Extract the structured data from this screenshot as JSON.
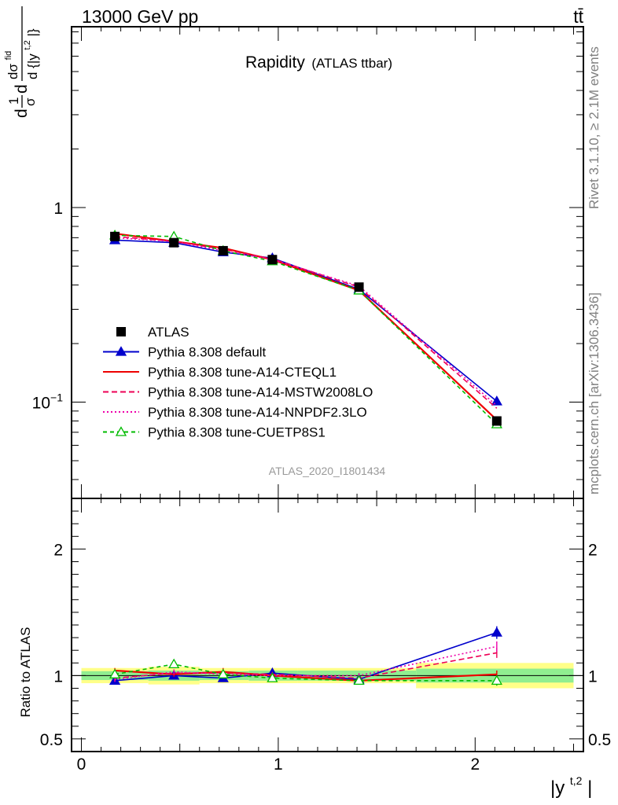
{
  "header": {
    "left": "13000 GeV pp",
    "right": "tt̄"
  },
  "title": {
    "main": "Rapidity",
    "sub": "(ATLAS ttbar)"
  },
  "side_texts": {
    "rivet": "Rivet 3.1.10, ≥ 2.1M events",
    "mcplots": "mcplots.cern.ch [arXiv:1306.3436]"
  },
  "watermark": "ATLAS_2020_I1801434",
  "y_title_upper": {
    "prefix": "d",
    "frac1_num": "1",
    "frac1_den": "σ",
    "mid": "d",
    "frac2_num": "dσ",
    "frac2_num_sup": "fid",
    "frac2_den": "d {|y",
    "frac2_den_sup": "t,2",
    "frac2_den_tail": "|}"
  },
  "x_title": {
    "base": "|y",
    "sup": "t,2",
    "tail": "|"
  },
  "chart_data": [
    {
      "type": "line",
      "panel": "main",
      "ylabel_ref": "y_title_upper",
      "log_y": true,
      "xlim": [
        -0.05,
        2.55
      ],
      "ylim": [
        0.032,
        8.5
      ],
      "x_ticks": [
        {
          "value": 0,
          "label": "0"
        },
        {
          "value": 1,
          "label": "1"
        },
        {
          "value": 2,
          "label": "2"
        }
      ],
      "y_ticks": [
        {
          "value": 0.1,
          "base": "10",
          "exp": "−1"
        },
        {
          "value": 1,
          "base": "1",
          "exp": ""
        }
      ],
      "x": [
        0.17,
        0.47,
        0.72,
        0.97,
        1.41,
        2.11
      ],
      "x_bins": [
        [
          0.0,
          0.34
        ],
        [
          0.34,
          0.6
        ],
        [
          0.6,
          0.85
        ],
        [
          0.85,
          1.1
        ],
        [
          1.1,
          1.7
        ],
        [
          1.7,
          2.5
        ]
      ],
      "data": {
        "name": "ATLAS",
        "color": "#000000",
        "values": [
          0.71,
          0.66,
          0.6,
          0.54,
          0.39,
          0.08
        ],
        "rel_err_inner": [
          0.035,
          0.04,
          0.035,
          0.04,
          0.04,
          0.055
        ],
        "rel_err_total": [
          0.06,
          0.07,
          0.06,
          0.06,
          0.06,
          0.1
        ]
      },
      "series": [
        {
          "name": "Pythia 8.308 default",
          "color": "#0000cc",
          "dash": "",
          "marker": "triangle-filled",
          "values": [
            0.68,
            0.66,
            0.59,
            0.55,
            0.38,
            0.101
          ]
        },
        {
          "name": "Pythia 8.308 tune-A14-CTEQL1",
          "color": "#ee0000",
          "dash": "",
          "marker": "none",
          "values": [
            0.735,
            0.67,
            0.62,
            0.54,
            0.375,
            0.081
          ]
        },
        {
          "name": "Pythia 8.308 tune-A14-MSTW2008LO",
          "color": "#ee0055",
          "dash": "7,4",
          "marker": "none",
          "values": [
            0.71,
            0.67,
            0.61,
            0.545,
            0.39,
            0.093
          ]
        },
        {
          "name": "Pythia 8.308 tune-A14-NNPDF2.3LO",
          "color": "#ee00aa",
          "dash": "2,3",
          "marker": "none",
          "values": [
            0.7,
            0.67,
            0.6,
            0.54,
            0.395,
            0.096
          ]
        },
        {
          "name": "Pythia 8.308 tune-CUETP8S1",
          "color": "#00bb00",
          "dash": "5,4",
          "marker": "triangle-open",
          "values": [
            0.72,
            0.71,
            0.6,
            0.53,
            0.375,
            0.077
          ]
        }
      ]
    },
    {
      "type": "line",
      "panel": "ratio",
      "ylabel": "Ratio to ATLAS",
      "ylim": [
        0.4,
        2.4
      ],
      "y_ticks": [
        {
          "value": 0.5,
          "label": "0.5"
        },
        {
          "value": 1,
          "label": "1"
        },
        {
          "value": 2,
          "label": "2"
        }
      ],
      "series": [
        {
          "name": "Pythia 8.308 default",
          "values": [
            0.96,
            1.0,
            0.98,
            1.02,
            0.97,
            1.34
          ],
          "errors": [
            0.03,
            0.02,
            0.02,
            0.03,
            0.02,
            0.05
          ]
        },
        {
          "name": "Pythia 8.308 tune-A14-CTEQL1",
          "values": [
            1.04,
            1.01,
            1.03,
            1.0,
            0.96,
            1.01
          ],
          "errors": [
            0.02,
            0.02,
            0.03,
            0.02,
            0.02,
            0.03
          ]
        },
        {
          "name": "Pythia 8.308 tune-A14-MSTW2008LO",
          "values": [
            0.98,
            1.02,
            1.02,
            1.01,
            0.98,
            1.18
          ],
          "errors": [
            0.02,
            0.02,
            0.02,
            0.02,
            0.02,
            0.04
          ]
        },
        {
          "name": "Pythia 8.308 tune-A14-NNPDF2.3LO",
          "values": [
            0.97,
            1.03,
            1.01,
            1.0,
            1.0,
            1.23
          ],
          "errors": [
            0.02,
            0.02,
            0.02,
            0.02,
            0.02,
            0.04
          ]
        },
        {
          "name": "Pythia 8.308 tune-CUETP8S1",
          "values": [
            1.01,
            1.09,
            1.01,
            0.98,
            0.96,
            0.96
          ],
          "errors": [
            0.02,
            0.03,
            0.02,
            0.02,
            0.02,
            0.04
          ]
        }
      ]
    }
  ],
  "colors": {
    "band_inner": "#90ee90",
    "band_outer": "#ffff88",
    "axis": "#000000",
    "side_text": "#808080",
    "watermark": "#999999"
  }
}
